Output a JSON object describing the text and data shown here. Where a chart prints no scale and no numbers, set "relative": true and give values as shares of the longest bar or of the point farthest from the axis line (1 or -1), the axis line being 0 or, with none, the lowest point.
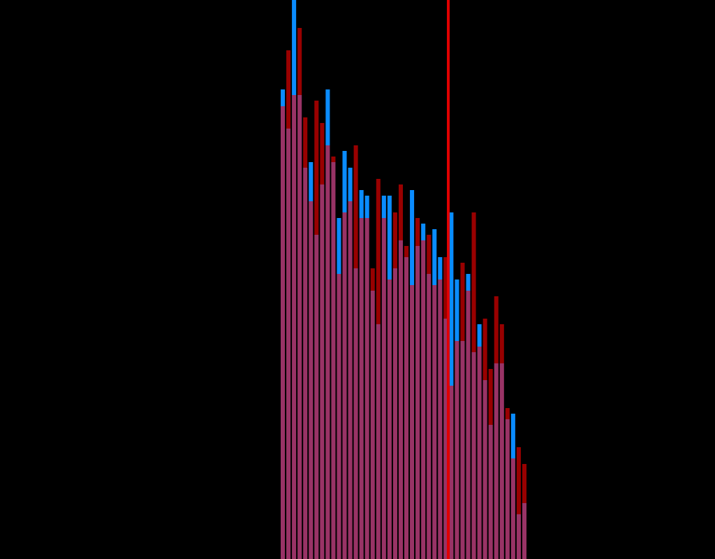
{
  "chart_data": {
    "type": "bar",
    "stacked": true,
    "relative": true,
    "categories": [
      null,
      null,
      null,
      null,
      null,
      null,
      null,
      null,
      null,
      null,
      null,
      null,
      null,
      null,
      null,
      null,
      null,
      null,
      null,
      null,
      null,
      null,
      null,
      null,
      null,
      null,
      null,
      null,
      null,
      null,
      null,
      null,
      null,
      null,
      null,
      null,
      null,
      null,
      null,
      null,
      null,
      null,
      null,
      null
    ],
    "series": [
      {
        "color": "#993366",
        "values": [
          0.81,
          0.77,
          0.83,
          0.83,
          0.7,
          0.64,
          0.58,
          0.67,
          0.74,
          0.71,
          0.51,
          0.62,
          0.64,
          0.52,
          0.61,
          0.61,
          0.48,
          0.42,
          0.61,
          0.5,
          0.52,
          0.57,
          0.54,
          0.49,
          0.56,
          0.57,
          0.51,
          0.49,
          0.5,
          0.43,
          0.31,
          0.39,
          0.39,
          0.48,
          0.37,
          0.38,
          0.32,
          0.24,
          0.35,
          0.35,
          0.25,
          0.18,
          0.08,
          0.1
        ]
      },
      {
        "colors": [
          "#0a8cff",
          "#990000",
          "#0a8cff",
          "#990000",
          "#990000",
          "#0a8cff",
          "#990000",
          "#990000",
          "#0a8cff",
          "#990000",
          "#0a8cff",
          "#0a8cff",
          "#0a8cff",
          "#990000",
          "#0a8cff",
          "#0a8cff",
          "#990000",
          "#990000",
          "#0a8cff",
          "#0a8cff",
          "#990000",
          "#990000",
          "#990000",
          "#0a8cff",
          "#990000",
          "#0a8cff",
          "#990000",
          "#0a8cff",
          "#0a8cff",
          "#990000",
          "#0a8cff",
          "#0a8cff",
          "#990000",
          "#0a8cff",
          "#990000",
          "#0a8cff",
          "#990000",
          "#990000",
          "#990000",
          "#990000",
          "#990000",
          "#0a8cff",
          "#990000",
          "#990000"
        ],
        "values": [
          0.03,
          0.14,
          0.17,
          0.12,
          0.09,
          0.07,
          0.24,
          0.11,
          0.1,
          0.01,
          0.1,
          0.11,
          0.06,
          0.22,
          0.05,
          0.04,
          0.04,
          0.26,
          0.04,
          0.15,
          0.1,
          0.1,
          0.02,
          0.17,
          0.05,
          0.03,
          0.07,
          0.1,
          0.04,
          0.11,
          0.31,
          0.11,
          0.14,
          0.03,
          0.25,
          0.04,
          0.11,
          0.1,
          0.12,
          0.07,
          0.02,
          0.08,
          0.12,
          0.07
        ]
      }
    ]
  }
}
